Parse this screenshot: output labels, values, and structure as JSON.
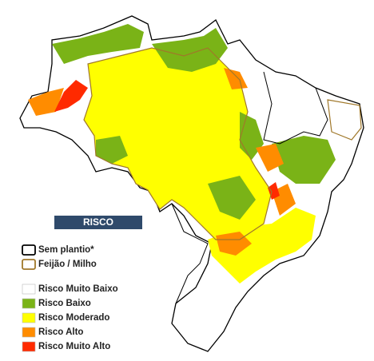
{
  "legend": {
    "title": "RISCO",
    "outlines": [
      {
        "label": "Sem plantio*",
        "color": "#000000"
      },
      {
        "label": "Feijão / Milho",
        "color": "#a0782a"
      }
    ],
    "classes": [
      {
        "label": "Risco Muito Baixo",
        "color": "#ffffff"
      },
      {
        "label": "Risco Baixo",
        "color": "#7ab317"
      },
      {
        "label": "Risco Moderado",
        "color": "#ffff00"
      },
      {
        "label": "Risco Alto",
        "color": "#ff8c00"
      },
      {
        "label": "Risco Muito Alto",
        "color": "#ff2a00"
      }
    ]
  }
}
